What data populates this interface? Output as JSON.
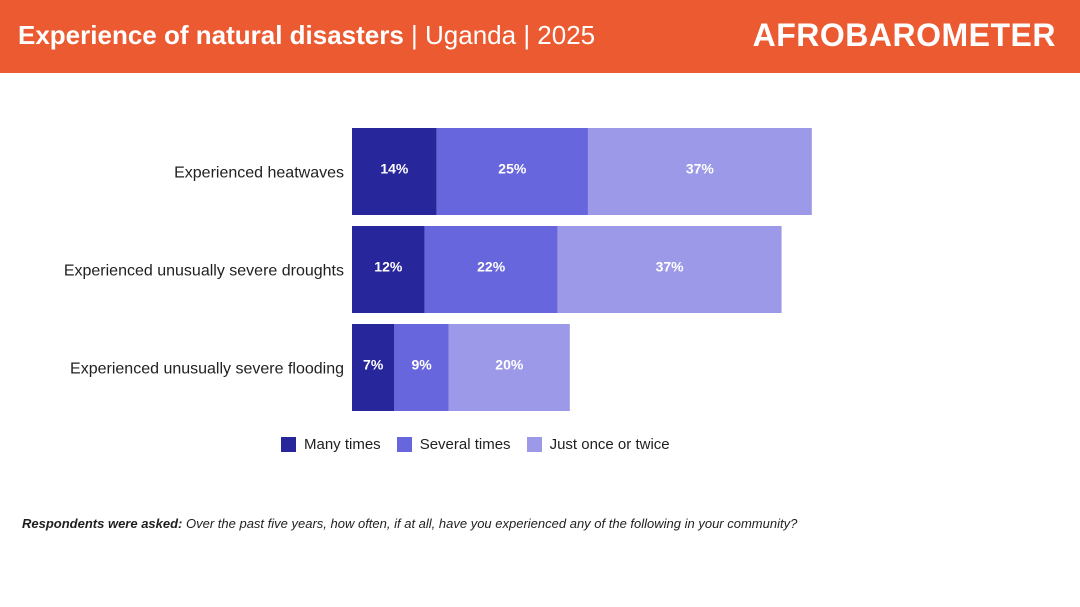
{
  "header": {
    "title_main": "Experience of natural disasters",
    "title_sub": " | Uganda | 2025",
    "logo": "AFROBAROMETER",
    "background_color": "#ec5a31"
  },
  "chart_data": {
    "type": "bar",
    "orientation": "horizontal",
    "stacked": true,
    "categories": [
      "Experienced heatwaves",
      "Experienced unusually severe droughts",
      "Experienced unusually severe flooding"
    ],
    "series": [
      {
        "name": "Many times",
        "color": "#27269b",
        "values": [
          14,
          12,
          7
        ],
        "labels": [
          "14%",
          "12%",
          "7%"
        ]
      },
      {
        "name": "Several times",
        "color": "#6766dc",
        "values": [
          25,
          22,
          9
        ],
        "labels": [
          "25%",
          "22%",
          "9%"
        ]
      },
      {
        "name": "Just once or twice",
        "color": "#9b99e8",
        "values": [
          37,
          37,
          20
        ],
        "labels": [
          "37%",
          "37%",
          "20%"
        ]
      }
    ],
    "legend_position": "bottom",
    "xlim": [
      0,
      100
    ],
    "grid": false
  },
  "footnote": {
    "lead": "Respondents were asked:",
    "text": " Over the past five years, how often, if at all, have you experienced any of the following in your community?"
  }
}
